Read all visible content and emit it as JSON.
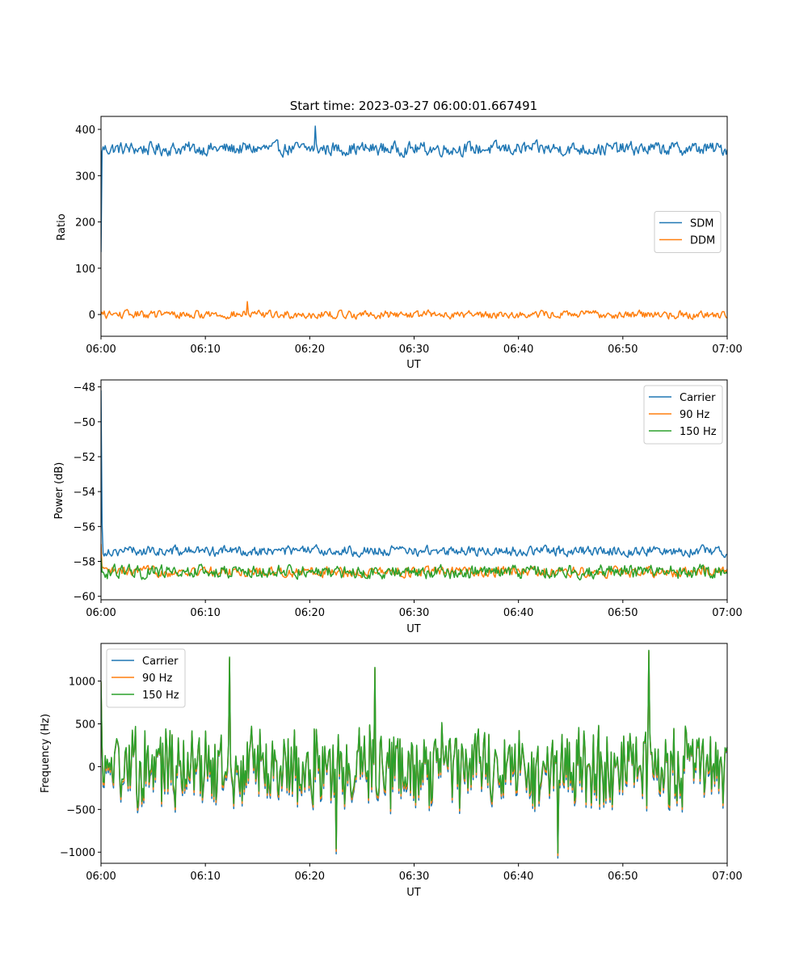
{
  "chart_data": [
    {
      "type": "line",
      "title": "Start time: 2023-03-27 06:00:01.667491",
      "xlabel": "UT",
      "ylabel": "Ratio",
      "xlim": [
        "06:00",
        "07:00"
      ],
      "ylim": [
        -47,
        428
      ],
      "x_ticks": [
        "06:00",
        "06:10",
        "06:20",
        "06:30",
        "06:40",
        "06:50",
        "07:00"
      ],
      "y_ticks": [
        0,
        100,
        200,
        300,
        400
      ],
      "y_tick_labels": [
        "0",
        "100",
        "200",
        "300",
        "400"
      ],
      "legend_position": "center-right",
      "series_style": "noisy time series, ~600 samples, values approximated by level and spread",
      "series": [
        {
          "name": "SDM",
          "color": "#1f77b4",
          "first": 135,
          "level": 358,
          "spread": 15,
          "spikes": [
            [
              20.5,
              407
            ]
          ]
        },
        {
          "name": "DDM",
          "color": "#ff7f0e",
          "first": 0,
          "level": 0,
          "spread": 9,
          "spikes": [
            [
              14,
              28
            ]
          ]
        }
      ]
    },
    {
      "type": "line",
      "title": "",
      "xlabel": "UT",
      "ylabel": "Power (dB)",
      "xlim": [
        "06:00",
        "07:00"
      ],
      "ylim": [
        -60.2,
        -47.6
      ],
      "x_ticks": [
        "06:00",
        "06:10",
        "06:20",
        "06:30",
        "06:40",
        "06:50",
        "07:00"
      ],
      "y_ticks": [
        -60,
        -58,
        -56,
        -54,
        -52,
        -50,
        -48
      ],
      "y_tick_labels": [
        "−60",
        "−58",
        "−56",
        "−54",
        "−52",
        "−50",
        "−48"
      ],
      "legend_position": "top-right",
      "series": [
        {
          "name": "Carrier",
          "color": "#1f77b4",
          "first": -48.2,
          "level": -57.4,
          "spread": 0.3
        },
        {
          "name": "90 Hz",
          "color": "#ff7f0e",
          "first": -57.0,
          "level": -58.6,
          "spread": 0.3
        },
        {
          "name": "150 Hz",
          "color": "#2ca02c",
          "first": -57.8,
          "level": -58.6,
          "spread": 0.4
        }
      ]
    },
    {
      "type": "line",
      "title": "",
      "xlabel": "UT",
      "ylabel": "Frequency (Hz)",
      "xlim": [
        "06:00",
        "07:00"
      ],
      "ylim": [
        -1130,
        1440
      ],
      "x_ticks": [
        "06:00",
        "06:10",
        "06:20",
        "06:30",
        "06:40",
        "06:50",
        "07:00"
      ],
      "y_ticks": [
        -1000,
        -500,
        0,
        500,
        1000
      ],
      "y_tick_labels": [
        "−1000",
        "−500",
        "0",
        "500",
        "1000"
      ],
      "legend_position": "top-left",
      "series": [
        {
          "name": "Carrier",
          "color": "#1f77b4",
          "offset": -60
        },
        {
          "name": "90 Hz",
          "color": "#ff7f0e",
          "offset": -30
        },
        {
          "name": "150 Hz",
          "color": "#2ca02c",
          "offset": 0
        }
      ],
      "spread": 380,
      "peaks": [
        [
          12.3,
          1280
        ],
        [
          52.5,
          1360
        ],
        [
          43.8,
          -1010
        ],
        [
          22.5,
          -960
        ],
        [
          26.2,
          1160
        ]
      ]
    }
  ]
}
